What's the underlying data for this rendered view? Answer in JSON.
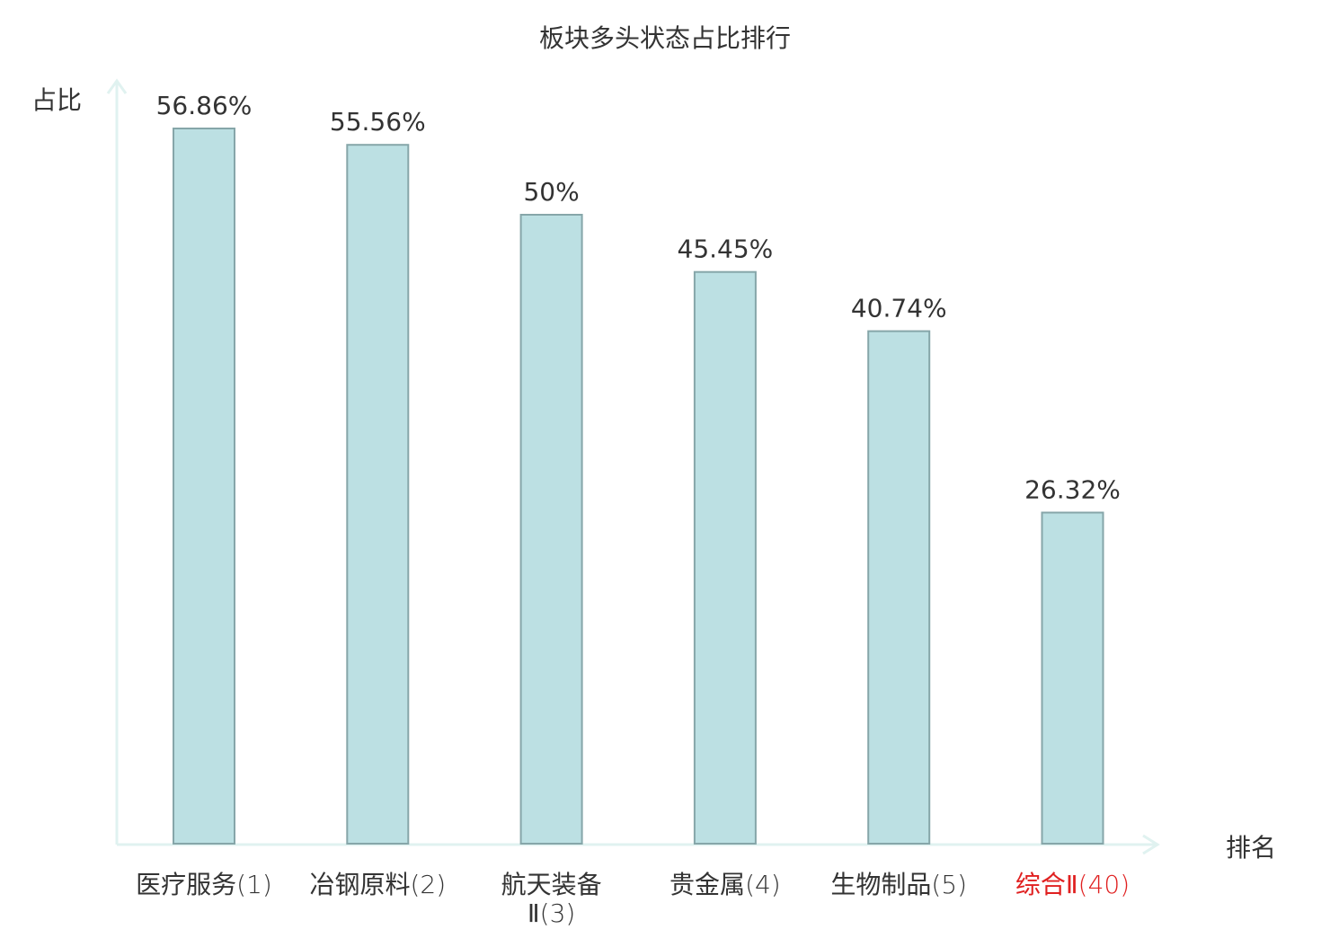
{
  "chart_data": {
    "type": "bar",
    "title": "板块多头状态占比排行",
    "ylabel": "占比",
    "xlabel": "排名",
    "categories": [
      {
        "name": "医疗服务",
        "rank": "(1)",
        "highlight": false
      },
      {
        "name": "冶钢原料",
        "rank": "(2)",
        "highlight": false
      },
      {
        "name": "航天装备Ⅱ",
        "rank": "(3)",
        "highlight": false
      },
      {
        "name": "贵金属",
        "rank": "(4)",
        "highlight": false
      },
      {
        "name": "生物制品",
        "rank": "(5)",
        "highlight": false
      },
      {
        "name": "综合Ⅱ",
        "rank": "(40)",
        "highlight": true
      }
    ],
    "values": [
      56.86,
      55.56,
      50,
      45.45,
      40.74,
      26.32
    ],
    "value_labels": [
      "56.86%",
      "55.56%",
      "50%",
      "45.45%",
      "40.74%",
      "26.32%"
    ],
    "ylim": [
      0,
      62
    ],
    "grid": false,
    "legend": "none",
    "colors": {
      "bar_fill": "#bce0e3",
      "bar_stroke": "#86a6a9",
      "axis": "#e0f2f0",
      "text": "#333333",
      "highlight_text": "#e02020"
    }
  }
}
